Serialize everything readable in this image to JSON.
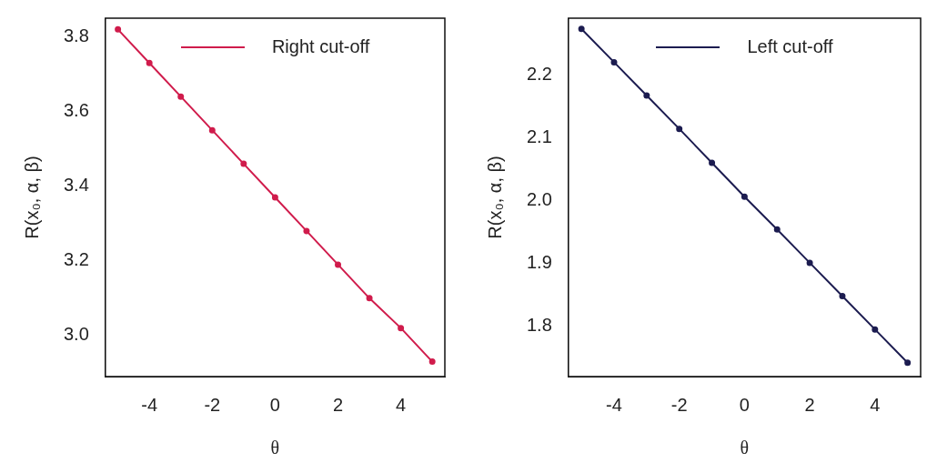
{
  "chart_data": [
    {
      "type": "line",
      "xlabel": "θ",
      "ylabel": "R(x₀, α, β)",
      "x": [
        -5,
        -4,
        -3,
        -2,
        -1,
        0,
        1,
        2,
        3,
        4,
        5
      ],
      "series": [
        {
          "name": "Right cut-off",
          "color": "#d01c4c",
          "values": [
            3.82,
            3.73,
            3.64,
            3.55,
            3.46,
            3.37,
            3.28,
            3.19,
            3.1,
            3.02,
            2.93
          ]
        }
      ],
      "xlim": [
        -5.4,
        5.4
      ],
      "xticks": [
        -4,
        -2,
        0,
        2,
        4
      ],
      "ylim": [
        2.89,
        3.85
      ],
      "yticks": [
        {
          "value": 3,
          "label": "3.0"
        },
        3.2,
        3.4,
        3.6,
        3.8
      ],
      "grid": false,
      "legend": "top",
      "marker": "circle",
      "line_style": "solid"
    },
    {
      "type": "line",
      "xlabel": "θ",
      "ylabel": "R(x₀, α, β)",
      "x": [
        -5,
        -4,
        -3,
        -2,
        -1,
        0,
        1,
        2,
        3,
        4,
        5
      ],
      "series": [
        {
          "name": "Left cut-off",
          "color": "#1c1c50",
          "values": [
            2.273,
            2.22,
            2.167,
            2.114,
            2.06,
            2.006,
            1.954,
            1.901,
            1.848,
            1.795,
            1.742
          ]
        }
      ],
      "xlim": [
        -5.4,
        5.4
      ],
      "xticks": [
        -4,
        -2,
        0,
        2,
        4
      ],
      "ylim": [
        1.72,
        2.29
      ],
      "yticks": [
        1.8,
        1.9,
        {
          "value": 2,
          "label": "2.0"
        },
        2.1,
        2.2
      ],
      "grid": false,
      "legend": "top",
      "marker": "circle",
      "line_style": "solid"
    }
  ]
}
